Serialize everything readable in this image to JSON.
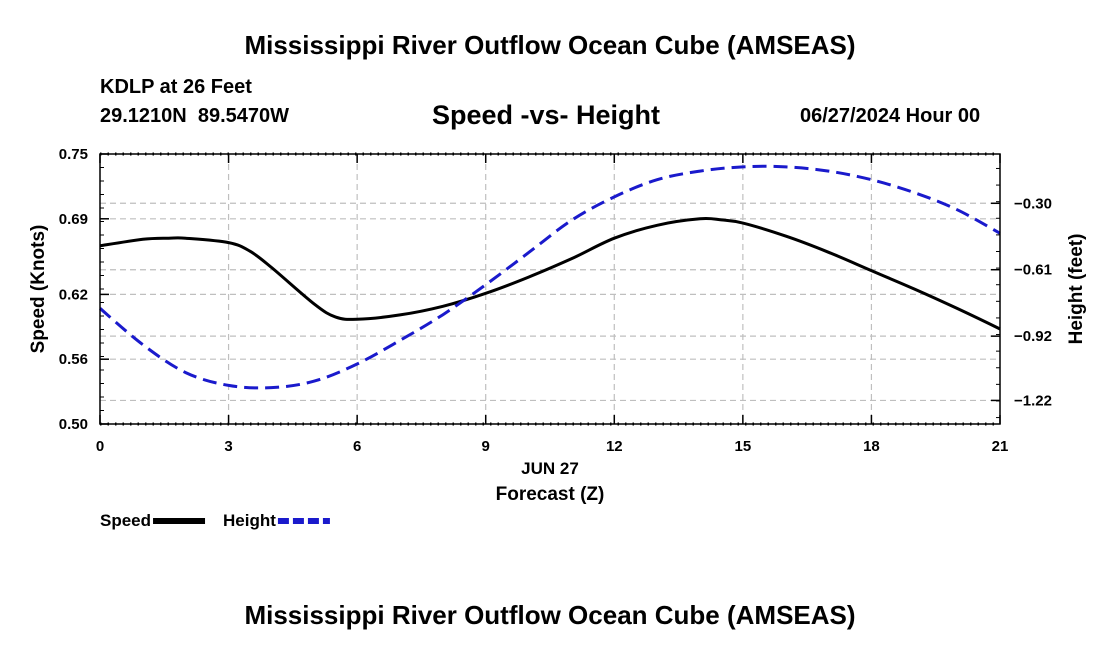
{
  "header": {
    "title": "Mississippi River Outflow Ocean Cube (AMSEAS)",
    "station": "KDLP at 26 Feet",
    "coords": "29.1210N  89.5470W",
    "subtitle": "Speed -vs- Height",
    "datetime": "06/27/2024 Hour 00"
  },
  "footer": {
    "title": "Mississippi River Outflow Ocean Cube (AMSEAS)"
  },
  "chart_data": {
    "type": "line",
    "title": "Speed -vs- Height",
    "xlabel": "Forecast (Z)",
    "xlabel_date": "JUN 27",
    "ylabel_left": "Speed (Knots)",
    "ylabel_right": "Height (feet)",
    "xlim": [
      0,
      21
    ],
    "ylim_left": [
      0.5,
      0.75
    ],
    "ylim_right": [
      -1.33,
      -0.07
    ],
    "x_ticks": [
      0,
      3,
      6,
      9,
      12,
      15,
      18,
      21
    ],
    "x_tick_labels": [
      "0",
      "3",
      "6",
      "9",
      "12",
      "15",
      "18",
      "21"
    ],
    "y_left_ticks": [
      0.5,
      0.56,
      0.62,
      0.69,
      0.75
    ],
    "y_left_tick_labels": [
      "0.50",
      "0.56",
      "0.62",
      "0.69",
      "0.75"
    ],
    "y_right_ticks": [
      -1.22,
      -0.92,
      -0.61,
      -0.3
    ],
    "y_right_tick_labels": [
      "−1.22",
      "−0.92",
      "−0.61",
      "−0.30"
    ],
    "grid": true,
    "series": [
      {
        "name": "Speed",
        "axis": "left",
        "color": "#000000",
        "dash": "solid",
        "x": [
          0,
          1,
          1.6,
          2,
          3,
          3.5,
          4,
          5,
          5.5,
          6,
          7,
          8,
          9,
          10,
          11,
          12,
          13,
          14,
          14.5,
          15,
          16,
          17,
          18,
          19,
          20,
          21
        ],
        "values": [
          0.665,
          0.671,
          0.672,
          0.672,
          0.668,
          0.66,
          0.645,
          0.611,
          0.599,
          0.597,
          0.601,
          0.609,
          0.621,
          0.636,
          0.653,
          0.672,
          0.684,
          0.69,
          0.689,
          0.686,
          0.674,
          0.659,
          0.642,
          0.625,
          0.607,
          0.588
        ]
      },
      {
        "name": "Height",
        "axis": "right",
        "color": "#1a1acc",
        "dash": "dashed",
        "x": [
          0,
          1,
          2,
          3,
          4,
          5,
          6,
          7,
          8,
          9,
          10,
          11,
          12,
          13,
          14,
          15,
          16,
          17,
          18,
          19,
          20,
          21
        ],
        "values": [
          -0.79,
          -0.96,
          -1.09,
          -1.15,
          -1.16,
          -1.13,
          -1.05,
          -0.94,
          -0.82,
          -0.68,
          -0.53,
          -0.38,
          -0.27,
          -0.19,
          -0.15,
          -0.13,
          -0.13,
          -0.15,
          -0.19,
          -0.25,
          -0.33,
          -0.44
        ]
      }
    ],
    "legend": [
      {
        "label": "Speed",
        "color": "#000000",
        "dash": "solid"
      },
      {
        "label": "Height",
        "color": "#1a1acc",
        "dash": "dashed"
      }
    ],
    "legend_position": "bottom-left"
  }
}
